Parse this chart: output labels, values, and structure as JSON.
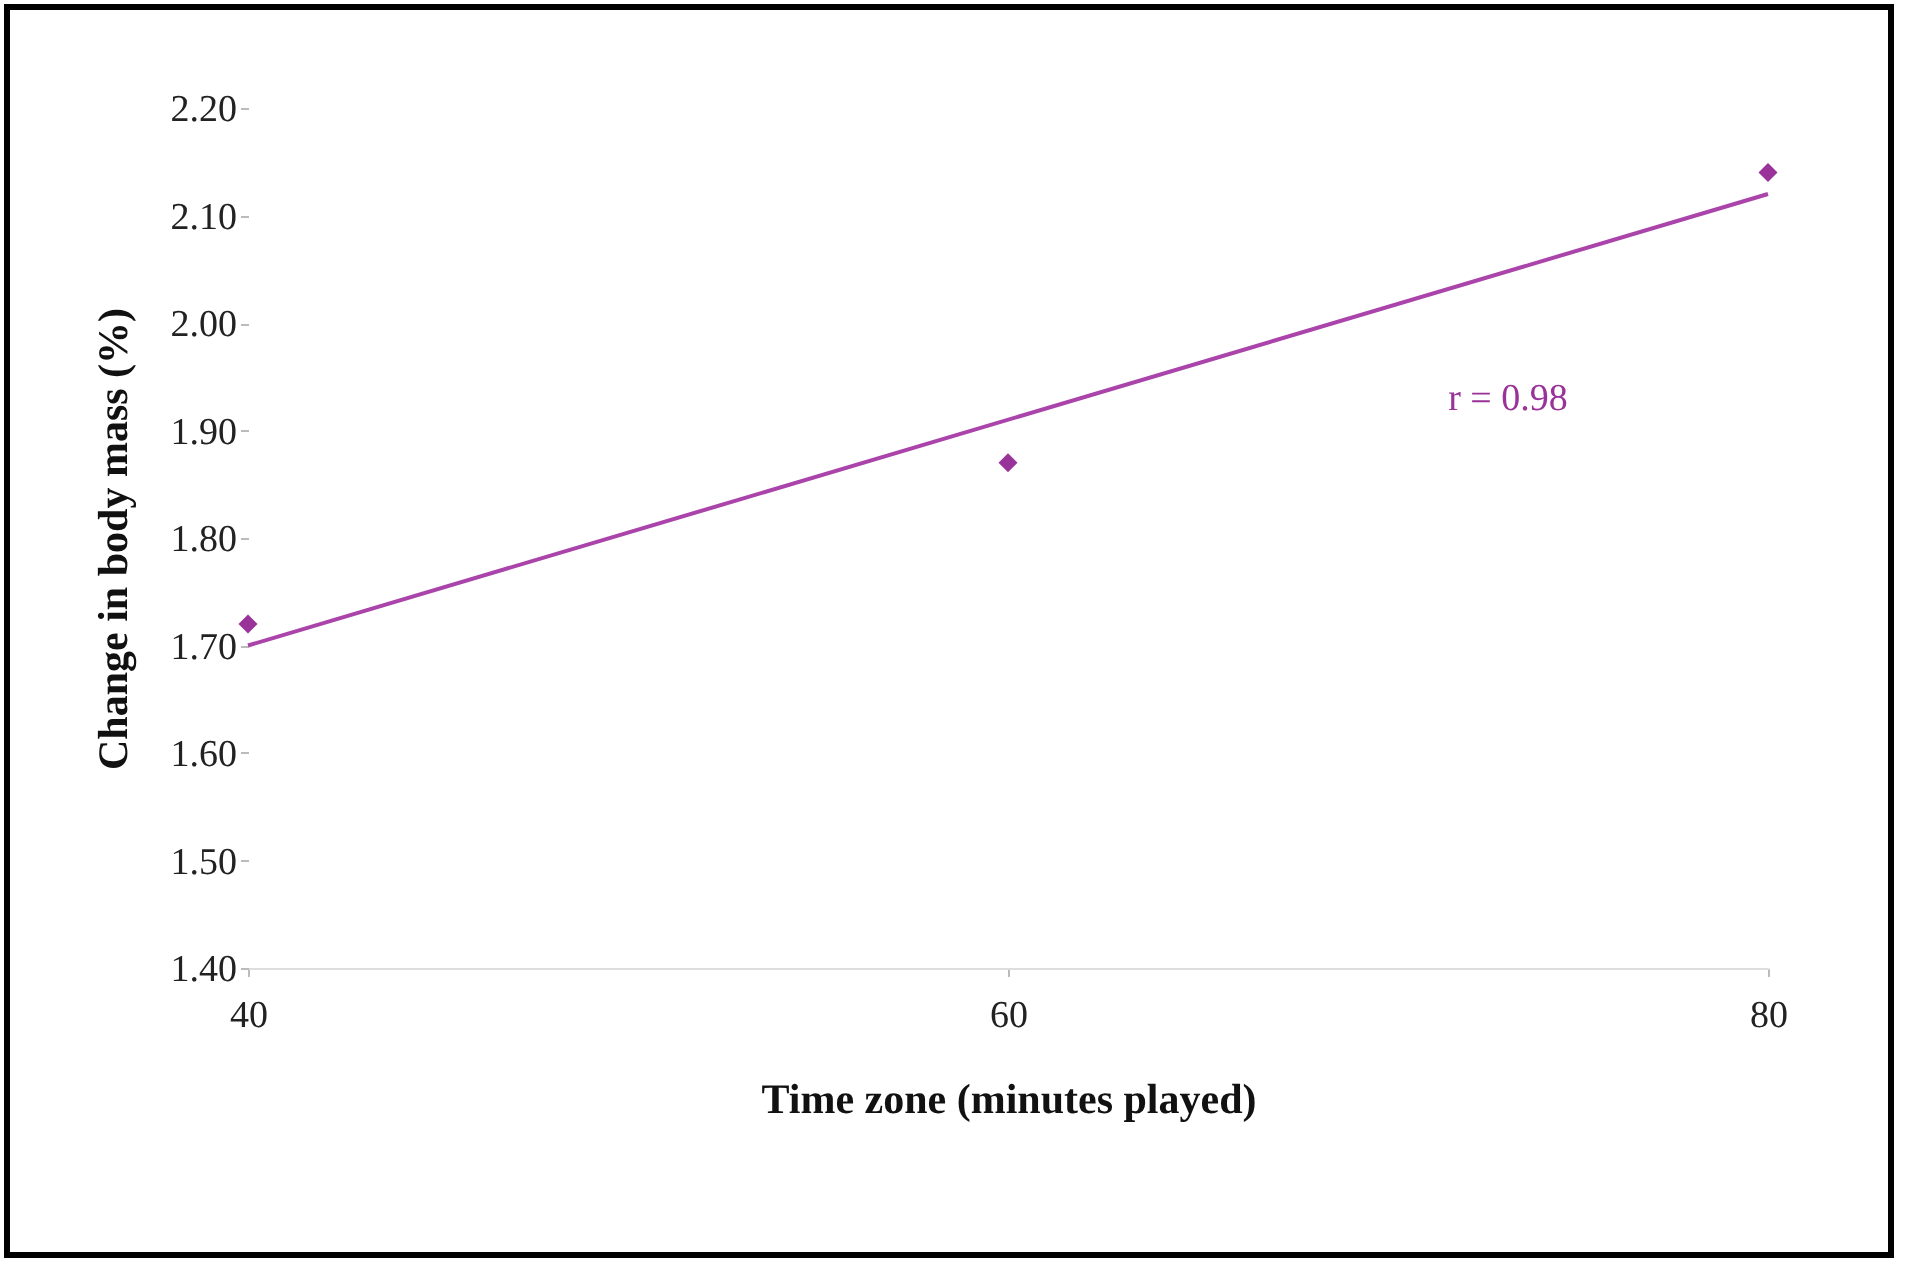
{
  "chart_data": {
    "type": "scatter",
    "xlabel": "Time zone (minutes played)",
    "ylabel": "Change in body mass (%)",
    "x": [
      40,
      60,
      80
    ],
    "series": [
      {
        "color": "#993399",
        "marker": "diamond",
        "values": [
          1.72,
          1.87,
          2.14
        ]
      },
      {
        "type": "line",
        "color": "#aa44aa",
        "x": [
          40,
          80
        ],
        "values": [
          1.7,
          2.12
        ]
      }
    ],
    "xlim": [
      40,
      80
    ],
    "xticks": [
      40,
      60,
      80
    ],
    "ylim": [
      1.4,
      2.2
    ],
    "yticks": [
      {
        "value": 1.4,
        "label": "1.40"
      },
      {
        "value": 1.5,
        "label": "1.50"
      },
      {
        "value": 1.6,
        "label": "1.60"
      },
      {
        "value": 1.7,
        "label": "1.70"
      },
      {
        "value": 1.8,
        "label": "1.80"
      },
      {
        "value": 1.9,
        "label": "1.90"
      },
      {
        "value": 2.0,
        "label": "2.00"
      },
      {
        "value": 2.1,
        "label": "2.10"
      },
      {
        "value": 2.2,
        "label": "2.20"
      }
    ],
    "annotations": [
      "r = 0.98"
    ]
  }
}
